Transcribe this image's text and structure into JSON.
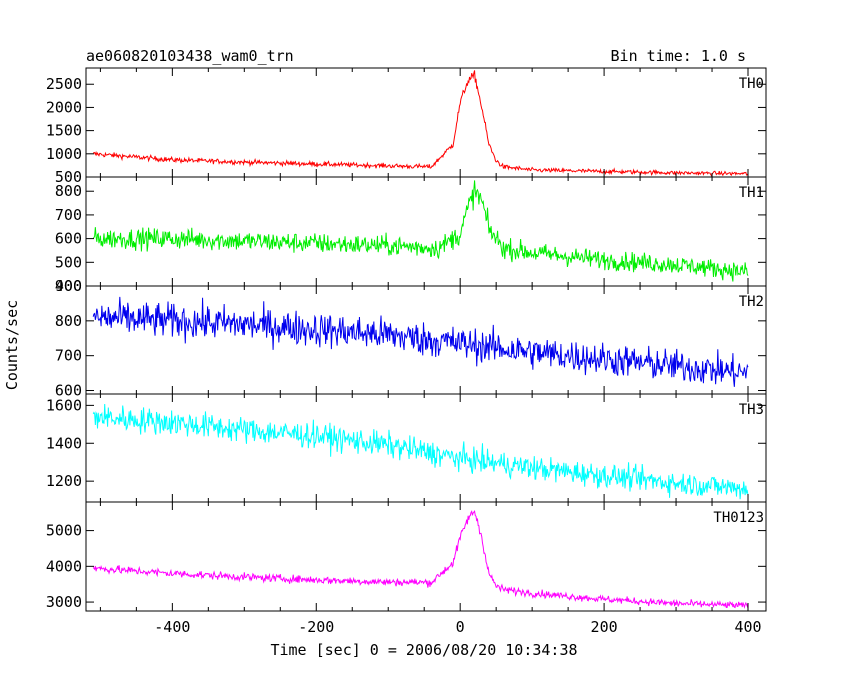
{
  "header": {
    "left_title": "ae060820103438_wam0_trn",
    "right_title": "Bin time: 1.0 s"
  },
  "axes": {
    "xlabel": "Time [sec] 0 = 2006/08/20 10:34:38",
    "ylabel": "Counts/sec"
  },
  "chart_data": {
    "type": "line",
    "title": "ae060820103438_wam0_trn",
    "subtitle": "Bin time: 1.0 s",
    "xlabel": "Time [sec] 0 = 2006/08/20 10:34:38",
    "ylabel": "Counts/sec",
    "xlim": [
      -520,
      425
    ],
    "x_ticks": [
      -400,
      -200,
      0,
      200,
      400
    ],
    "x_tick_labels": [
      "-400",
      "-200",
      "0",
      "200",
      "400"
    ],
    "grid": false,
    "legend": "panel labels at top-right of each panel",
    "panels": [
      {
        "name": "TH0",
        "color": "#ff0000",
        "ylim": [
          500,
          2850
        ],
        "y_ticks": [
          500,
          1000,
          1500,
          2000,
          2500
        ],
        "y_tick_labels": [
          "500",
          "1000",
          "1500",
          "2000",
          "2500"
        ],
        "time": [
          -510,
          -400,
          -300,
          -200,
          -100,
          -40,
          -10,
          0,
          10,
          20,
          30,
          40,
          50,
          60,
          100,
          200,
          300,
          400
        ],
        "counts": [
          1000,
          870,
          820,
          780,
          740,
          720,
          1200,
          2100,
          2550,
          2700,
          2000,
          1200,
          850,
          720,
          650,
          620,
          590,
          570
        ]
      },
      {
        "name": "TH1",
        "color": "#00ee00",
        "ylim": [
          400,
          860
        ],
        "y_ticks": [
          400,
          500,
          600,
          700,
          800
        ],
        "y_tick_labels": [
          "400",
          "500",
          "600",
          "700",
          "800"
        ],
        "time": [
          -510,
          -400,
          -300,
          -200,
          -100,
          -30,
          0,
          10,
          20,
          30,
          40,
          60,
          100,
          200,
          300,
          400
        ],
        "counts": [
          600,
          600,
          590,
          580,
          570,
          560,
          620,
          720,
          800,
          760,
          640,
          560,
          540,
          510,
          490,
          460
        ]
      },
      {
        "name": "TH2",
        "color": "#0000ee",
        "ylim": [
          590,
          900
        ],
        "y_ticks": [
          600,
          700,
          800,
          900
        ],
        "y_tick_labels": [
          "600",
          "700",
          "800",
          "900"
        ],
        "time": [
          -510,
          -400,
          -300,
          -200,
          -100,
          0,
          100,
          200,
          300,
          400
        ],
        "counts": [
          810,
          800,
          790,
          775,
          760,
          735,
          710,
          690,
          670,
          650
        ]
      },
      {
        "name": "TH3",
        "color": "#00ffff",
        "ylim": [
          1090,
          1660
        ],
        "y_ticks": [
          1200,
          1400,
          1600
        ],
        "y_tick_labels": [
          "1200",
          "1400",
          "1600"
        ],
        "time": [
          -510,
          -400,
          -300,
          -200,
          -100,
          0,
          100,
          200,
          300,
          400
        ],
        "counts": [
          1540,
          1510,
          1470,
          1440,
          1390,
          1320,
          1270,
          1230,
          1190,
          1160
        ]
      },
      {
        "name": "TH0123",
        "color": "#ff00ff",
        "ylim": [
          2750,
          5800
        ],
        "y_ticks": [
          3000,
          4000,
          5000
        ],
        "y_tick_labels": [
          "3000",
          "4000",
          "5000"
        ],
        "time": [
          -510,
          -400,
          -300,
          -200,
          -100,
          -40,
          -10,
          0,
          10,
          20,
          30,
          40,
          50,
          60,
          100,
          200,
          300,
          400
        ],
        "counts": [
          3950,
          3800,
          3700,
          3620,
          3560,
          3550,
          4100,
          4800,
          5300,
          5550,
          4800,
          3800,
          3450,
          3350,
          3250,
          3080,
          2960,
          2900
        ]
      }
    ]
  }
}
